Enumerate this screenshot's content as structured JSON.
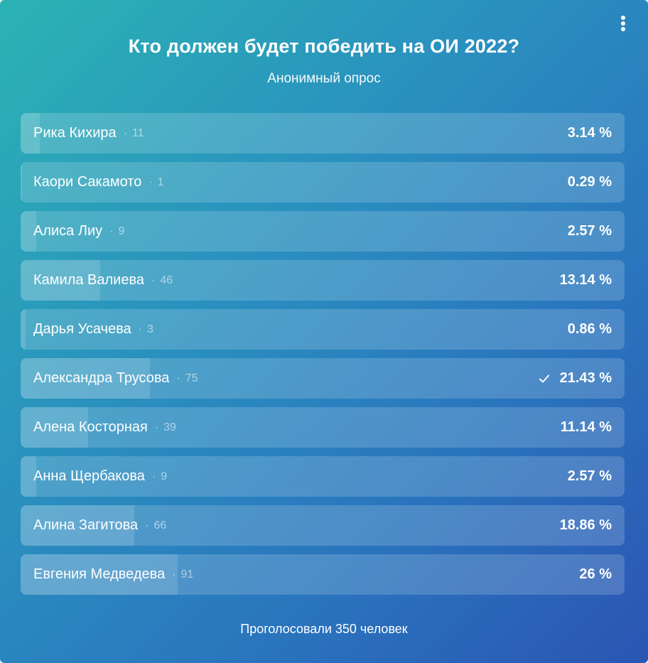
{
  "poll": {
    "title": "Кто должен будет победить на ОИ 2022?",
    "subtitle": "Анонимный опрос",
    "menu_icon": "more-vertical-icon",
    "separator": "·",
    "options": [
      {
        "label": "Рика Кихира",
        "votes": "11",
        "percent": "3.14 %",
        "share": 0.0314,
        "chosen": false
      },
      {
        "label": "Каори Сакамото",
        "votes": "1",
        "percent": "0.29 %",
        "share": 0.0029,
        "chosen": false
      },
      {
        "label": "Алиса Лиу",
        "votes": "9",
        "percent": "2.57 %",
        "share": 0.0257,
        "chosen": false
      },
      {
        "label": "Камила Валиева",
        "votes": "46",
        "percent": "13.14 %",
        "share": 0.1314,
        "chosen": false
      },
      {
        "label": "Дарья Усачева",
        "votes": "3",
        "percent": "0.86 %",
        "share": 0.0086,
        "chosen": false
      },
      {
        "label": "Александра Трусова",
        "votes": "75",
        "percent": "21.43 %",
        "share": 0.2143,
        "chosen": true
      },
      {
        "label": "Алена Косторная",
        "votes": "39",
        "percent": "11.14 %",
        "share": 0.1114,
        "chosen": false
      },
      {
        "label": "Анна Щербакова",
        "votes": "9",
        "percent": "2.57 %",
        "share": 0.0257,
        "chosen": false
      },
      {
        "label": "Алина Загитова",
        "votes": "66",
        "percent": "18.86 %",
        "share": 0.1886,
        "chosen": false
      },
      {
        "label": "Евгения Медведева",
        "votes": "91",
        "percent": "26 %",
        "share": 0.26,
        "chosen": false
      }
    ],
    "footer": "Проголосовали 350 человек"
  }
}
